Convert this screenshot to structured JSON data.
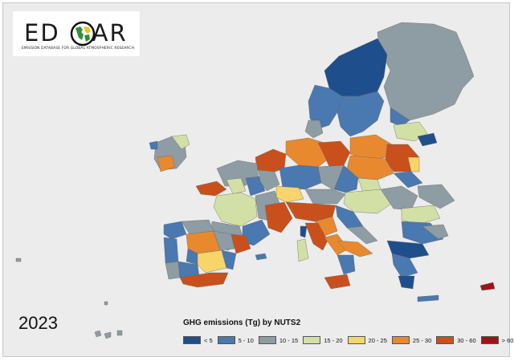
{
  "logo": {
    "wordmark_left": "ED",
    "wordmark_right": "AR",
    "subtitle": "EMISSION DATABASE FOR GLOBAL ATMOSPHERIC RESEARCH"
  },
  "year": "2023",
  "legend": {
    "title": "GHG emissions (Tg)  by NUTS2",
    "classes": [
      {
        "label": "< 5",
        "color": "#1f4e8c"
      },
      {
        "label": "5 - 10",
        "color": "#4a78b0"
      },
      {
        "label": "10 - 15",
        "color": "#8e9ca3"
      },
      {
        "label": "15 - 20",
        "color": "#d2e0a6"
      },
      {
        "label": "20 - 25",
        "color": "#f7d56a"
      },
      {
        "label": "25 - 30",
        "color": "#e8892f"
      },
      {
        "label": "30 - 60",
        "color": "#c9501c"
      },
      {
        "label": "> 60",
        "color": "#a01414"
      }
    ]
  },
  "map": {
    "background_color": "#ececec",
    "regions": [
      {
        "area": "Iceland/North Atlantic",
        "class": "10 - 15"
      },
      {
        "area": "Northern Norway/Sweden",
        "class": "< 5"
      },
      {
        "area": "Finland",
        "class": "10 - 15"
      },
      {
        "area": "Southern Sweden",
        "class": "5 - 10"
      },
      {
        "area": "Estonia/Latvia",
        "class": "15 - 20"
      },
      {
        "area": "Ireland",
        "class": "10 - 15"
      },
      {
        "area": "Northern Ireland",
        "class": "15 - 20"
      },
      {
        "area": "Benelux",
        "class": "30 - 60"
      },
      {
        "area": "Northern Germany",
        "class": "25 - 30"
      },
      {
        "area": "Poland",
        "class": "25 - 30"
      },
      {
        "area": "Northern France",
        "class": "10 - 15"
      },
      {
        "area": "Brittany",
        "class": "30 - 60"
      },
      {
        "area": "Central France",
        "class": "15 - 20"
      },
      {
        "area": "South-west France",
        "class": "10 - 15"
      },
      {
        "area": "Southern Germany",
        "class": "5 - 10"
      },
      {
        "area": "Switzerland/Alps",
        "class": "20 - 25"
      },
      {
        "area": "Northern Italy",
        "class": "30 - 60"
      },
      {
        "area": "Central Italy",
        "class": "25 - 30"
      },
      {
        "area": "Southern Italy",
        "class": "5 - 10"
      },
      {
        "area": "Sardinia",
        "class": "15 - 20"
      },
      {
        "area": "Sicily",
        "class": "30 - 60"
      },
      {
        "area": "Austria/Czechia",
        "class": "10 - 15"
      },
      {
        "area": "Hungary",
        "class": "15 - 20"
      },
      {
        "area": "Romania",
        "class": "10 - 15"
      },
      {
        "area": "Bulgaria",
        "class": "5 - 10"
      },
      {
        "area": "Greece",
        "class": "< 5"
      },
      {
        "area": "Portugal",
        "class": "5 - 10"
      },
      {
        "area": "North-west Spain",
        "class": "10 - 15"
      },
      {
        "area": "Central Spain",
        "class": "25 - 30"
      },
      {
        "area": "Andalusia",
        "class": "30 - 60"
      },
      {
        "area": "Catalonia",
        "class": "30 - 60"
      },
      {
        "area": "Eastern Spain",
        "class": "20 - 25"
      },
      {
        "area": "Cyprus",
        "class": "> 60"
      }
    ]
  }
}
